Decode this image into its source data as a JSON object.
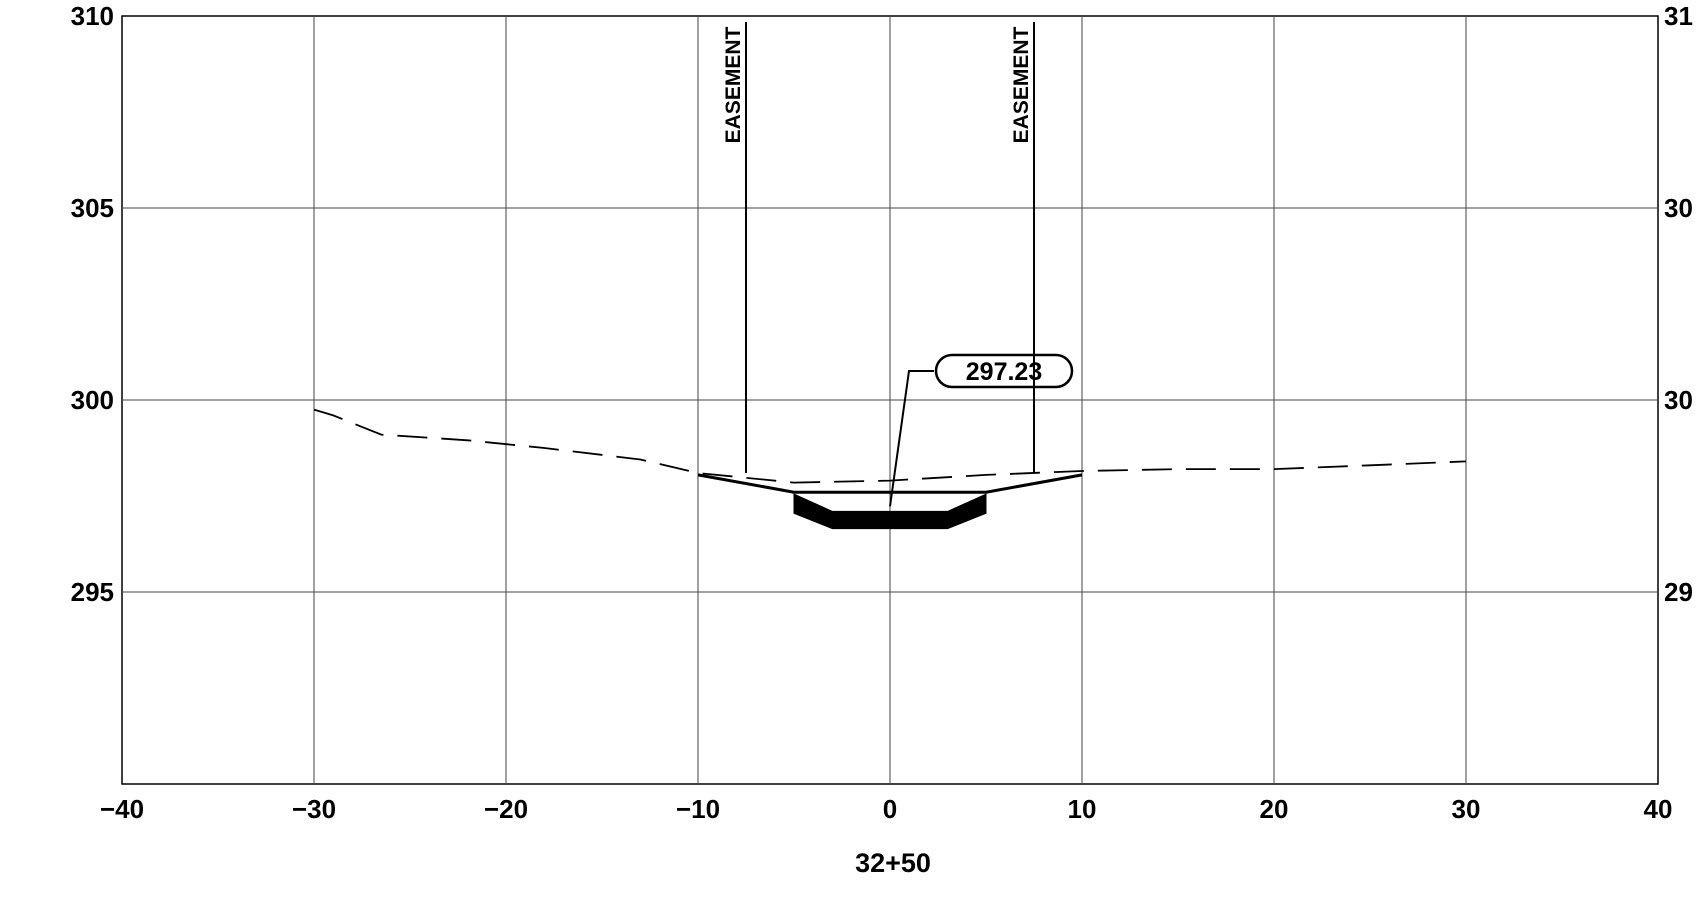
{
  "chart_data": {
    "type": "line",
    "title": "",
    "xlabel": "32+50",
    "ylabel": "",
    "xlim": [
      -40,
      40
    ],
    "ylim": [
      290,
      310
    ],
    "x_ticks": [
      -40,
      -30,
      -20,
      -10,
      0,
      10,
      20,
      30,
      40
    ],
    "x_tick_labels": [
      "−40",
      "−30",
      "−20",
      "−10",
      "0",
      "10",
      "20",
      "30",
      "40"
    ],
    "y_ticks": [
      295,
      300,
      305,
      310
    ],
    "y_tick_labels_left": [
      "295",
      "300",
      "305",
      "310"
    ],
    "y_tick_labels_right": [
      "29",
      "30",
      "30",
      "31"
    ],
    "grid": true,
    "series": [
      {
        "style": "dashed",
        "x": [
          -30,
          -29,
          -26.5,
          -22,
          -18,
          -13,
          -10,
          -5,
          0,
          5,
          10,
          15,
          20,
          25,
          30
        ],
        "y": [
          299.75,
          299.6,
          299.1,
          298.95,
          298.75,
          298.45,
          298.1,
          297.85,
          297.9,
          298.05,
          298.15,
          298.2,
          298.2,
          298.3,
          298.4
        ]
      },
      {
        "style": "solid",
        "x": [
          -10,
          -5,
          5,
          10
        ],
        "y": [
          298.05,
          297.6,
          297.6,
          298.05
        ]
      },
      {
        "style": "filled",
        "x": [
          -5,
          -3,
          3,
          5,
          5,
          3,
          -3,
          -5
        ],
        "y": [
          297.55,
          297.1,
          297.1,
          297.55,
          297.05,
          296.65,
          296.65,
          297.05
        ]
      }
    ],
    "annotations": [
      {
        "text": "297.23",
        "x": 0,
        "y": 297.23
      },
      {
        "text": "EASEMENT",
        "x": -7.5,
        "y_from": 298.1,
        "y_to": 310
      },
      {
        "text": "EASEMENT",
        "x": 7.5,
        "y_from": 298.1,
        "y_to": 310
      }
    ]
  }
}
